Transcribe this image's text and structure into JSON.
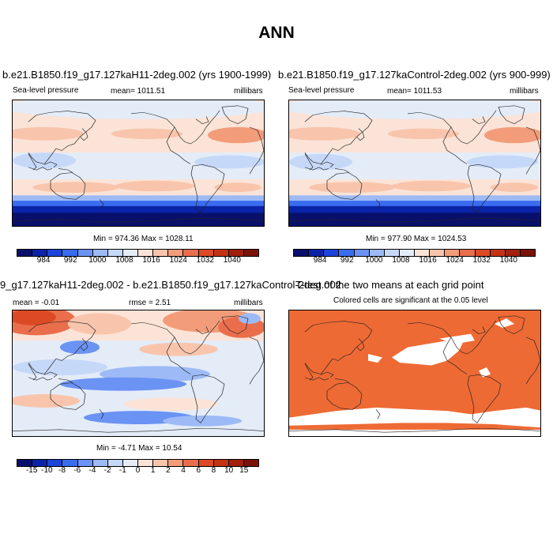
{
  "title": "ANN",
  "panels": [
    {
      "title": "b.e21.B1850.f19_g17.127kaH11-2deg.002 (yrs 1900-1999)",
      "left_label": "Sea-level pressure",
      "center_label": "mean= 1011.51",
      "right_label": "millibars",
      "minmax": "Min = 974.36 Max = 1028.11"
    },
    {
      "title": "b.e21.B1850.f19_g17.127kaControl-2deg.002 (yrs 900-999)",
      "left_label": "Sea-level pressure",
      "center_label": "mean= 1011.53",
      "right_label": "millibars",
      "minmax": "Min = 977.90 Max = 1024.53"
    },
    {
      "title": "9_g17.127kaH11-2deg.002 - b.e21.B1850.f19_g17.127kaControl-2deg.002",
      "left_label": "mean = -0.01",
      "center_label": "rmse = 2.51",
      "right_label": "millibars",
      "minmax": "Min = -4.71 Max = 10.54"
    },
    {
      "title": "T-test of the two means at each grid point",
      "subtitle": "Colored cells are significant at the 0.05 level"
    }
  ],
  "colorbar_abs": {
    "labels": [
      "984",
      "992",
      "1000",
      "1008",
      "1016",
      "1024",
      "1032",
      "1040"
    ],
    "colors": [
      "#08106b",
      "#0a23a8",
      "#1c44d9",
      "#3a6cf0",
      "#6b93f4",
      "#9dbaf7",
      "#c6d8f8",
      "#e4ecf8",
      "#fbe3d7",
      "#f8c5ac",
      "#f29c7a",
      "#ea6e4c",
      "#dc4a25",
      "#c53213",
      "#a1200b",
      "#7a1306"
    ]
  },
  "colorbar_diff": {
    "labels": [
      "-15",
      "-10",
      "-8",
      "-6",
      "-4",
      "-2",
      "-1",
      "0",
      "1",
      "2",
      "4",
      "6",
      "8",
      "10",
      "15"
    ],
    "colors": [
      "#08106b",
      "#0a23a8",
      "#1c44d9",
      "#3a6cf0",
      "#6b93f4",
      "#9dbaf7",
      "#c6d8f8",
      "#e4ecf8",
      "#fbe3d7",
      "#f8c5ac",
      "#f29c7a",
      "#ea6e4c",
      "#dc4a25",
      "#c53213",
      "#a1200b",
      "#7a1306"
    ]
  },
  "significance_color": "#ee6a34"
}
